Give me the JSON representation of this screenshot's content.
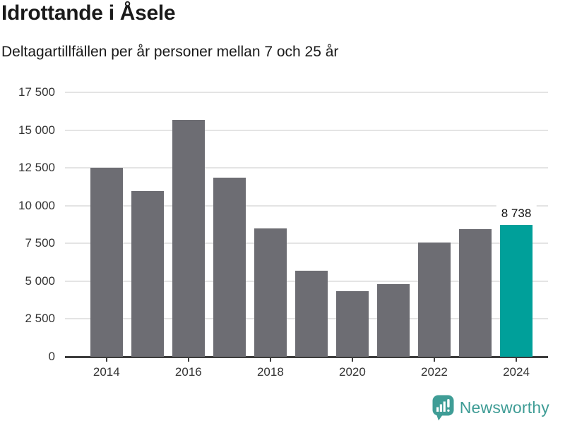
{
  "header": {
    "title": "Idrottande i Åsele",
    "subtitle": "Deltagartillfällen per år personer mellan 7 och 25 år"
  },
  "chart_data": {
    "type": "bar",
    "title": "Idrottande i Åsele",
    "subtitle": "Deltagartillfällen per år personer mellan 7 och 25 år",
    "categories": [
      2014,
      2015,
      2016,
      2017,
      2018,
      2019,
      2020,
      2021,
      2022,
      2023,
      2024
    ],
    "values": [
      12500,
      10950,
      15700,
      11860,
      8500,
      5680,
      4360,
      4830,
      7550,
      8430,
      8738
    ],
    "ylim": [
      0,
      17500
    ],
    "grid": "horizontal",
    "legend_position": "none",
    "highlight_index": 10,
    "annotation": {
      "index": 10,
      "text": "8 738"
    },
    "colors": {
      "bar_default": "#6d6d73",
      "bar_highlight": "#00a09a"
    },
    "y_ticks": [
      {
        "value": 0,
        "label": "0"
      },
      {
        "value": 2500,
        "label": "2 500"
      },
      {
        "value": 5000,
        "label": "5 000"
      },
      {
        "value": 7500,
        "label": "7 500"
      },
      {
        "value": 10000,
        "label": "10 000"
      },
      {
        "value": 12500,
        "label": "12 500"
      },
      {
        "value": 15000,
        "label": "15 000"
      },
      {
        "value": 17500,
        "label": "17 500"
      }
    ],
    "x_ticks": [
      {
        "year": 2014,
        "label": "2014"
      },
      {
        "year": 2016,
        "label": "2016"
      },
      {
        "year": 2018,
        "label": "2018"
      },
      {
        "year": 2020,
        "label": "2020"
      },
      {
        "year": 2022,
        "label": "2022"
      },
      {
        "year": 2024,
        "label": "2024"
      }
    ]
  },
  "footer": {
    "brand": "Newsworthy",
    "brand_color": "#3e9c95",
    "logo_icon": "newsworthy-bubble-chart-icon"
  }
}
